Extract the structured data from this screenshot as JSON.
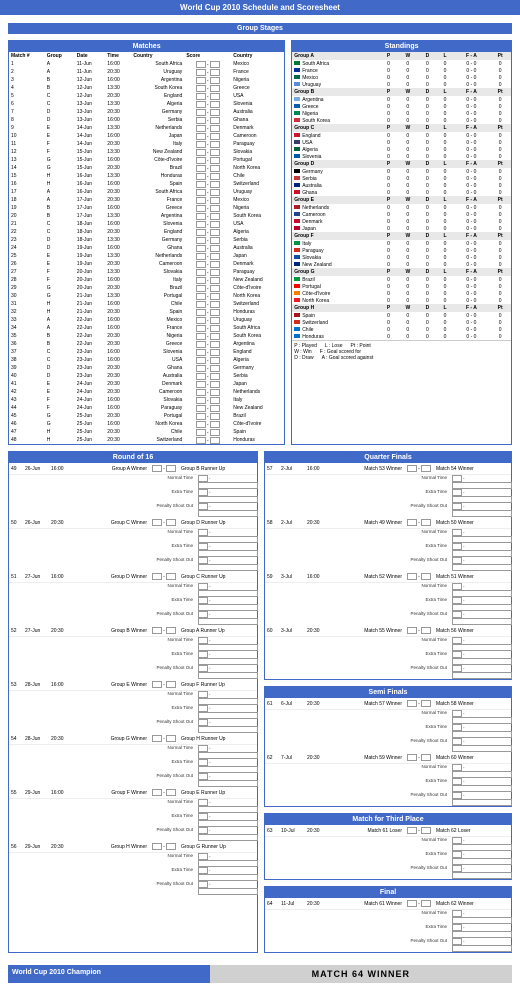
{
  "title": "World Cup 2010 Schedule and Scoresheet",
  "section_group_stages": "Group Stages",
  "panel_matches": "Matches",
  "panel_standings": "Standings",
  "panel_r16": "Round of 16",
  "panel_qf": "Quarter Finals",
  "panel_sf": "Semi Finals",
  "panel_3rd": "Match for Third Place",
  "panel_final": "Final",
  "match_cols": [
    "Match #",
    "Group",
    "Date",
    "Time",
    "Country",
    "Score",
    "Country"
  ],
  "matches": [
    [
      1,
      "A",
      "11-Jun",
      "16:00",
      "South Africa",
      "Mexico"
    ],
    [
      2,
      "A",
      "11-Jun",
      "20:30",
      "Uruguay",
      "France"
    ],
    [
      3,
      "B",
      "12-Jun",
      "16:00",
      "Argentina",
      "Nigeria"
    ],
    [
      4,
      "B",
      "12-Jun",
      "13:30",
      "South Korea",
      "Greece"
    ],
    [
      5,
      "C",
      "12-Jun",
      "20:30",
      "England",
      "USA"
    ],
    [
      6,
      "C",
      "13-Jun",
      "13:30",
      "Algeria",
      "Slovenia"
    ],
    [
      7,
      "D",
      "13-Jun",
      "20:30",
      "Germany",
      "Australia"
    ],
    [
      8,
      "D",
      "13-Jun",
      "16:00",
      "Serbia",
      "Ghana"
    ],
    [
      9,
      "E",
      "14-Jun",
      "13:30",
      "Netherlands",
      "Denmark"
    ],
    [
      10,
      "E",
      "14-Jun",
      "16:00",
      "Japan",
      "Cameroon"
    ],
    [
      11,
      "F",
      "14-Jun",
      "20:30",
      "Italy",
      "Paraguay"
    ],
    [
      12,
      "F",
      "15-Jun",
      "13:30",
      "New Zealand",
      "Slovakia"
    ],
    [
      13,
      "G",
      "15-Jun",
      "16:00",
      "Côte-d'Ivoire",
      "Portugal"
    ],
    [
      14,
      "G",
      "15-Jun",
      "20:30",
      "Brazil",
      "North Korea"
    ],
    [
      15,
      "H",
      "16-Jun",
      "13:30",
      "Honduras",
      "Chile"
    ],
    [
      16,
      "H",
      "16-Jun",
      "16:00",
      "Spain",
      "Switzerland"
    ],
    [
      17,
      "A",
      "16-Jun",
      "20:30",
      "South Africa",
      "Uruguay"
    ],
    [
      18,
      "A",
      "17-Jun",
      "20:30",
      "France",
      "Mexico"
    ],
    [
      19,
      "B",
      "17-Jun",
      "16:00",
      "Greece",
      "Nigeria"
    ],
    [
      20,
      "B",
      "17-Jun",
      "13:30",
      "Argentina",
      "South Korea"
    ],
    [
      21,
      "C",
      "18-Jun",
      "16:00",
      "Slovenia",
      "USA"
    ],
    [
      22,
      "C",
      "18-Jun",
      "20:30",
      "England",
      "Algeria"
    ],
    [
      23,
      "D",
      "18-Jun",
      "13:30",
      "Germany",
      "Serbia"
    ],
    [
      24,
      "D",
      "19-Jun",
      "16:00",
      "Ghana",
      "Australia"
    ],
    [
      25,
      "E",
      "19-Jun",
      "13:30",
      "Netherlands",
      "Japan"
    ],
    [
      26,
      "E",
      "19-Jun",
      "20:30",
      "Cameroon",
      "Denmark"
    ],
    [
      27,
      "F",
      "20-Jun",
      "13:30",
      "Slovakia",
      "Paraguay"
    ],
    [
      28,
      "F",
      "20-Jun",
      "16:00",
      "Italy",
      "New Zealand"
    ],
    [
      29,
      "G",
      "20-Jun",
      "20:30",
      "Brazil",
      "Côte-d'Ivoire"
    ],
    [
      30,
      "G",
      "21-Jun",
      "13:30",
      "Portugal",
      "North Korea"
    ],
    [
      31,
      "H",
      "21-Jun",
      "16:00",
      "Chile",
      "Switzerland"
    ],
    [
      32,
      "H",
      "21-Jun",
      "20:30",
      "Spain",
      "Honduras"
    ],
    [
      33,
      "A",
      "22-Jun",
      "16:00",
      "Mexico",
      "Uruguay"
    ],
    [
      34,
      "A",
      "22-Jun",
      "16:00",
      "France",
      "South Africa"
    ],
    [
      35,
      "B",
      "22-Jun",
      "20:30",
      "Nigeria",
      "South Korea"
    ],
    [
      36,
      "B",
      "22-Jun",
      "20:30",
      "Greece",
      "Argentina"
    ],
    [
      37,
      "C",
      "23-Jun",
      "16:00",
      "Slovenia",
      "England"
    ],
    [
      38,
      "C",
      "23-Jun",
      "16:00",
      "USA",
      "Algeria"
    ],
    [
      39,
      "D",
      "23-Jun",
      "20:30",
      "Ghana",
      "Germany"
    ],
    [
      40,
      "D",
      "23-Jun",
      "20:30",
      "Australia",
      "Serbia"
    ],
    [
      41,
      "E",
      "24-Jun",
      "20:30",
      "Denmark",
      "Japan"
    ],
    [
      42,
      "E",
      "24-Jun",
      "20:30",
      "Cameroon",
      "Netherlands"
    ],
    [
      43,
      "F",
      "24-Jun",
      "16:00",
      "Slovakia",
      "Italy"
    ],
    [
      44,
      "F",
      "24-Jun",
      "16:00",
      "Paraguay",
      "New Zealand"
    ],
    [
      45,
      "G",
      "25-Jun",
      "20:30",
      "Portugal",
      "Brazil"
    ],
    [
      46,
      "G",
      "25-Jun",
      "16:00",
      "North Korea",
      "Côte-d'Ivoire"
    ],
    [
      47,
      "H",
      "25-Jun",
      "20:30",
      "Chile",
      "Spain"
    ],
    [
      48,
      "H",
      "25-Jun",
      "20:30",
      "Switzerland",
      "Honduras"
    ]
  ],
  "std_cols": [
    "",
    "P",
    "W",
    "D",
    "L",
    "F - A",
    "Pt"
  ],
  "groups": [
    {
      "name": "Group A",
      "flags": [
        "#007a33",
        "#003399",
        "#006847",
        "#5a8fd8"
      ],
      "teams": [
        "South Africa",
        "France",
        "Mexico",
        "Uruguay"
      ]
    },
    {
      "name": "Group B",
      "flags": [
        "#74acdf",
        "#0d5eaf",
        "#008751",
        "#cd2e3a"
      ],
      "teams": [
        "Argentina",
        "Greece",
        "Nigeria",
        "South Korea"
      ]
    },
    {
      "name": "Group C",
      "flags": [
        "#cf142b",
        "#3c3b6e",
        "#006233",
        "#005ba0"
      ],
      "teams": [
        "England",
        "USA",
        "Algeria",
        "Slovenia"
      ]
    },
    {
      "name": "Group D",
      "flags": [
        "#000",
        "#c6363c",
        "#00247d",
        "#ce1126"
      ],
      "teams": [
        "Germany",
        "Serbia",
        "Australia",
        "Ghana"
      ]
    },
    {
      "name": "Group E",
      "flags": [
        "#ae1c28",
        "#21468b",
        "#c60c30",
        "#bc002d"
      ],
      "teams": [
        "Netherlands",
        "Cameroon",
        "Denmark",
        "Japan"
      ]
    },
    {
      "name": "Group F",
      "flags": [
        "#009246",
        "#d52b1e",
        "#0b4ea2",
        "#00247d"
      ],
      "teams": [
        "Italy",
        "Paraguay",
        "Slovakia",
        "New Zealand"
      ]
    },
    {
      "name": "Group G",
      "flags": [
        "#009b3a",
        "#ff0000",
        "#f77f00",
        "#ed1c27"
      ],
      "teams": [
        "Brazil",
        "Portugal",
        "Côte-d'Ivoire",
        "North Korea"
      ]
    },
    {
      "name": "Group H",
      "flags": [
        "#aa151b",
        "#d52b1e",
        "#0073cf",
        "#0073cf"
      ],
      "teams": [
        "Spain",
        "Switzerland",
        "Chile",
        "Honduras"
      ]
    }
  ],
  "std_row": [
    "0",
    "0",
    "0",
    "0",
    "0 - 0",
    "0"
  ],
  "legend": {
    "p": "P : Played",
    "w": "W : Win",
    "d": "D : Draw",
    "l": "L : Lose",
    "f": "F : Goal scored for",
    "a": "A : Goal scored against",
    "pt": "Pt : Point"
  },
  "ko_subs": [
    "Normal Time",
    "Extra Time",
    "Penalty Shoot Out"
  ],
  "r16": [
    [
      49,
      "26-Jun",
      "16:00",
      "Group A Winner",
      "Group B Runner Up"
    ],
    [
      50,
      "26-Jun",
      "20:30",
      "Group C Winner",
      "Group D Runner Up"
    ],
    [
      51,
      "27-Jun",
      "16:00",
      "Group D Winner",
      "Group C Runner Up"
    ],
    [
      52,
      "27-Jun",
      "20:30",
      "Group B Winner",
      "Group A Runner Up"
    ],
    [
      53,
      "28-Jun",
      "16:00",
      "Group E Winner",
      "Group F Runner Up"
    ],
    [
      54,
      "28-Jun",
      "20:30",
      "Group G Winner",
      "Group H Runner Up"
    ],
    [
      55,
      "29-Jun",
      "16:00",
      "Group F Winner",
      "Group E Runner Up"
    ],
    [
      56,
      "29-Jun",
      "20:30",
      "Group H Winner",
      "Group G Runner Up"
    ]
  ],
  "qf": [
    [
      57,
      "2-Jul",
      "16:00",
      "Match 53 Winner",
      "Match 54 Winner"
    ],
    [
      58,
      "2-Jul",
      "20:30",
      "Match 49 Winner",
      "Match 50 Winner"
    ],
    [
      59,
      "3-Jul",
      "16:00",
      "Match 52 Winner",
      "Match 51 Winner"
    ],
    [
      60,
      "3-Jul",
      "20:30",
      "Match 55 Winner",
      "Match 56 Winner"
    ]
  ],
  "sf": [
    [
      61,
      "6-Jul",
      "20:30",
      "Match 57 Winner",
      "Match 58 Winner"
    ],
    [
      62,
      "7-Jul",
      "20:30",
      "Match 59 Winner",
      "Match 60 Winner"
    ]
  ],
  "third": [
    [
      63,
      "10-Jul",
      "20:30",
      "Match 61 Loser",
      "Match 62 Loser"
    ]
  ],
  "final": [
    [
      64,
      "11-Jul",
      "20:30",
      "Match 61 Winner",
      "Match 62 Winner"
    ]
  ],
  "footer_champion": "World Cup 2010 Champion",
  "footer_winner": "MATCH 64 WINNER"
}
